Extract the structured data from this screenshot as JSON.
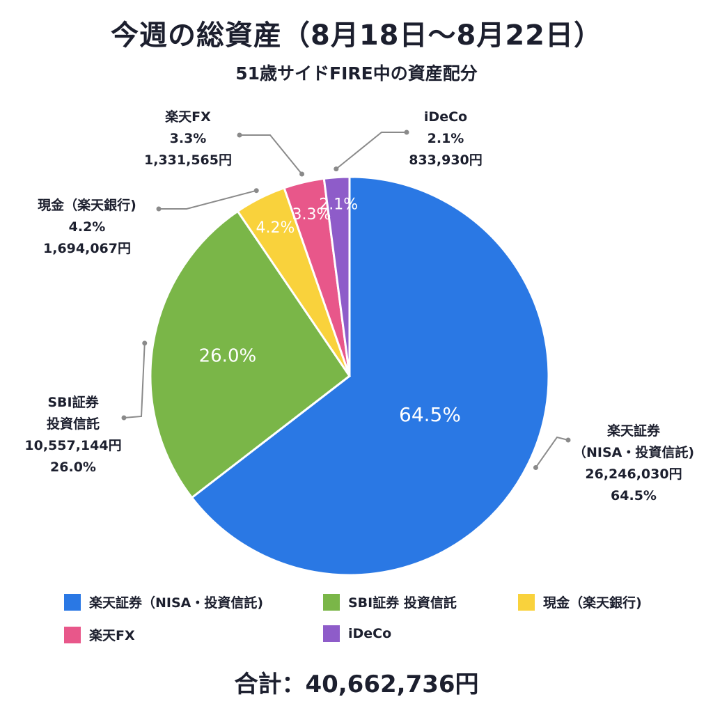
{
  "title": "今週の総資産（8月18日〜8月22日）",
  "subtitle": "51歳サイドFIRE中の資産配分",
  "total_text": "合計：40,662,736円",
  "chart_data": {
    "type": "pie",
    "title": "今週の総資産（8月18日〜8月22日）",
    "subtitle": "51歳サイドFIRE中の資産配分",
    "total": "40,662,736円",
    "legend_position": "bottom",
    "slices": [
      {
        "name": "楽天証券（NISA・投資信託)",
        "legend_label": "楽天証券（NISA・投資信託)",
        "callout_lines": [
          "楽天証券",
          "（NISA・投資信託)",
          "26,246,030円",
          "64.5%"
        ],
        "value": 26246030,
        "percent": 64.5,
        "inside_label": "64.5%",
        "color": "#2a78e4"
      },
      {
        "name": "SBI証券 投資信託",
        "legend_label": "SBI証券 投資信託",
        "callout_lines": [
          "SBI証券",
          "投資信託",
          "10,557,144円",
          "26.0%"
        ],
        "value": 10557144,
        "percent": 26.0,
        "inside_label": "26.0%",
        "color": "#7ab648"
      },
      {
        "name": "現金（楽天銀行)",
        "legend_label": "現金（楽天銀行)",
        "callout_lines": [
          "現金（楽天銀行)",
          "4.2%",
          "1,694,067円"
        ],
        "value": 1694067,
        "percent": 4.2,
        "inside_label": "4.2%",
        "color": "#f9d23c"
      },
      {
        "name": "楽天FX",
        "legend_label": "楽天FX",
        "callout_lines": [
          "楽天FX",
          "3.3%",
          "1,331,565円"
        ],
        "value": 1331565,
        "percent": 3.3,
        "inside_label": "3.3%",
        "color": "#e8578a"
      },
      {
        "name": "iDeCo",
        "legend_label": "iDeCo",
        "callout_lines": [
          "iDeCo",
          "2.1%",
          "833,930円"
        ],
        "value": 833930,
        "percent": 2.1,
        "inside_label": "2.1%",
        "color": "#8e5cc9"
      }
    ]
  }
}
